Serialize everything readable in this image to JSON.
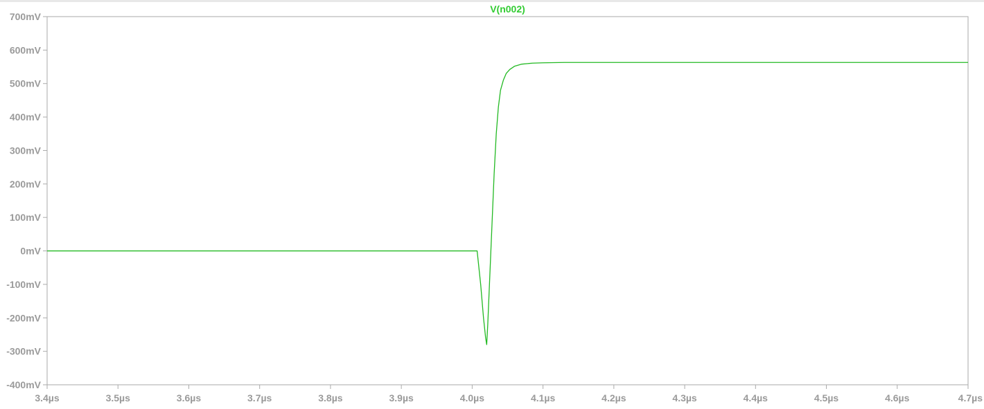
{
  "chart_data": {
    "type": "line",
    "title": "V(n002)",
    "xlabel": "",
    "ylabel": "",
    "xlim": [
      3.4,
      4.7
    ],
    "ylim": [
      -400,
      700
    ],
    "x_ticks": [
      3.4,
      3.5,
      3.6,
      3.7,
      3.8,
      3.9,
      4.0,
      4.1,
      4.2,
      4.3,
      4.4,
      4.5,
      4.6,
      4.7
    ],
    "x_tick_labels": [
      "3.4µs",
      "3.5µs",
      "3.6µs",
      "3.7µs",
      "3.8µs",
      "3.9µs",
      "4.0µs",
      "4.1µs",
      "4.2µs",
      "4.3µs",
      "4.4µs",
      "4.5µs",
      "4.6µs",
      "4.7µs"
    ],
    "y_ticks": [
      700,
      600,
      500,
      400,
      300,
      200,
      100,
      0,
      -100,
      -200,
      -300,
      -400
    ],
    "y_tick_labels": [
      "700mV",
      "600mV",
      "500mV",
      "400mV",
      "300mV",
      "200mV",
      "100mV",
      "0mV",
      "-100mV",
      "-200mV",
      "-300mV",
      "-400mV"
    ],
    "grid": false,
    "colors": {
      "trace": "#22b922",
      "title": "#33cc33",
      "axis": "#aaaaaa",
      "tick_label": "#9a9a9a"
    },
    "series": [
      {
        "name": "V(n002)",
        "x": [
          3.4,
          3.6,
          3.8,
          4.0,
          4.007,
          4.012,
          4.016,
          4.019,
          4.0205,
          4.022,
          4.025,
          4.028,
          4.031,
          4.034,
          4.037,
          4.04,
          4.044,
          4.048,
          4.053,
          4.06,
          4.07,
          4.085,
          4.1,
          4.13,
          4.16,
          4.2,
          4.4,
          4.7
        ],
        "y": [
          0,
          0,
          0,
          0,
          0,
          -100,
          -200,
          -260,
          -280,
          -220,
          -70,
          80,
          230,
          350,
          430,
          480,
          510,
          530,
          542,
          552,
          558,
          561,
          562,
          563,
          563,
          563,
          563,
          563
        ]
      }
    ]
  }
}
